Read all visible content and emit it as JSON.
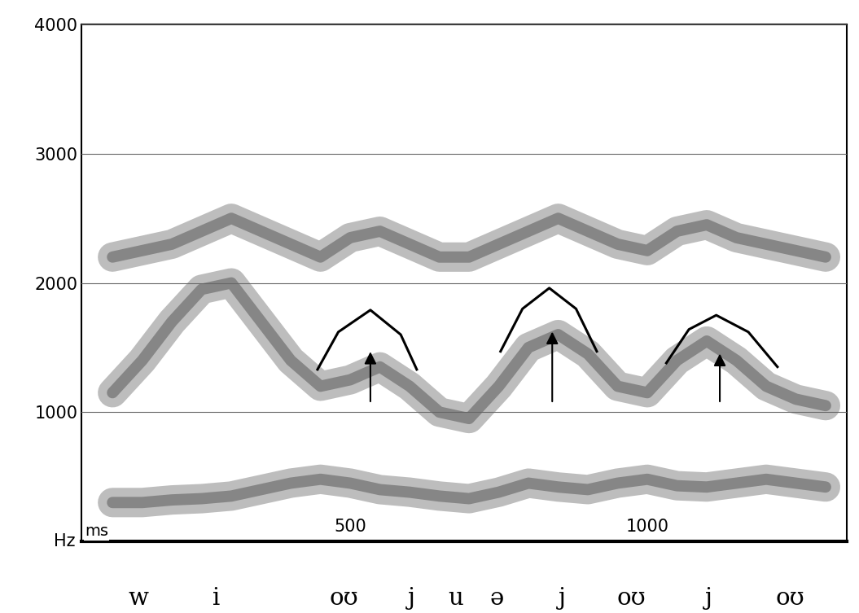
{
  "chart_data": {
    "type": "spectrogram",
    "x_label": "ms",
    "y_label": "Hz",
    "xlim": [
      48,
      1336
    ],
    "ylim": [
      0,
      4000
    ],
    "xticks": [
      500,
      1000
    ],
    "yticks": [
      1000,
      2000,
      3000,
      4000
    ],
    "grid": true,
    "x": [
      100,
      150,
      200,
      250,
      300,
      350,
      400,
      450,
      500,
      550,
      600,
      650,
      700,
      750,
      800,
      850,
      900,
      950,
      1000,
      1050,
      1100,
      1150,
      1200,
      1250,
      1300
    ],
    "formants": [
      [
        300,
        300,
        320,
        330,
        350,
        400,
        450,
        480,
        450,
        400,
        380,
        350,
        330,
        380,
        450,
        420,
        400,
        450,
        480,
        430,
        420,
        450,
        480,
        450,
        420
      ],
      [
        1150,
        1400,
        1700,
        1950,
        2000,
        1700,
        1400,
        1200,
        1250,
        1350,
        1200,
        1000,
        950,
        1200,
        1500,
        1600,
        1450,
        1200,
        1150,
        1400,
        1550,
        1400,
        1200,
        1100,
        1050
      ],
      [
        2200,
        2250,
        2300,
        2400,
        2500,
        2400,
        2300,
        2200,
        2350,
        2400,
        2300,
        2200,
        2200,
        2300,
        2400,
        2500,
        2400,
        2300,
        2250,
        2400,
        2450,
        2350,
        2300,
        2250,
        2200
      ]
    ],
    "curves": [
      {
        "x": [
          445,
          480,
          534,
          585,
          612
        ],
        "y": [
          1330,
          1620,
          1790,
          1600,
          1330
        ]
      },
      {
        "x": [
          753,
          790,
          835,
          880,
          915
        ],
        "y": [
          1470,
          1800,
          1960,
          1800,
          1470
        ]
      },
      {
        "x": [
          1032,
          1070,
          1116,
          1170,
          1219
        ],
        "y": [
          1380,
          1640,
          1750,
          1620,
          1350
        ]
      }
    ],
    "arrows": [
      {
        "x": 534,
        "y_from": 1065,
        "y_to": 1485
      },
      {
        "x": 840,
        "y_from": 1065,
        "y_to": 1640
      },
      {
        "x": 1122,
        "y_from": 1065,
        "y_to": 1470
      }
    ],
    "segments": {
      "labels": [
        "w",
        "i",
        "oʊ",
        "j",
        "u",
        "ə",
        "j",
        "oʊ",
        "j",
        "oʊ"
      ],
      "x": [
        144,
        274,
        489,
        603,
        678,
        747,
        856,
        973,
        1103,
        1240
      ]
    }
  }
}
